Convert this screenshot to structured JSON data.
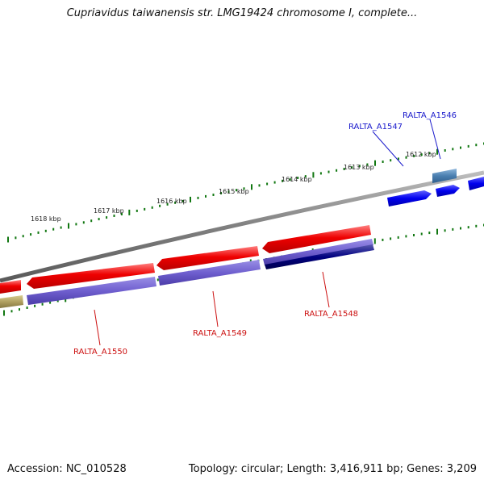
{
  "title": "Cupriavidus taiwanensis str. LMG19424 chromosome I, complete...",
  "footer": {
    "accession": "Accession: NC_010528",
    "summary": "Topology: circular; Length: 3,416,911 bp; Genes: 3,209"
  },
  "kbp_labels": [
    "1618 kbp",
    "1617 kbp",
    "1616 kbp",
    "1615 kbp",
    "1614 kbp",
    "1613 kbp",
    "1612 kbp"
  ],
  "gene_labels": {
    "RALTA_A1546": "RALTA_A1546",
    "RALTA_A1547": "RALTA_A1547",
    "RALTA_A1548": "RALTA_A1548",
    "RALTA_A1549": "RALTA_A1549",
    "RALTA_A1550": "RALTA_A1550"
  },
  "colors": {
    "forward_gene": "#0000ee",
    "reverse_gene": "#ee0000",
    "cds_purple": "#6f5fcf",
    "cds_navy": "#000080",
    "steel_blue": "#4a7fb0",
    "olive": "#b0a060",
    "tick_green": "#117711",
    "backbone": "#808080",
    "label_blue": "#1a1acc",
    "label_red": "#cc1111"
  }
}
